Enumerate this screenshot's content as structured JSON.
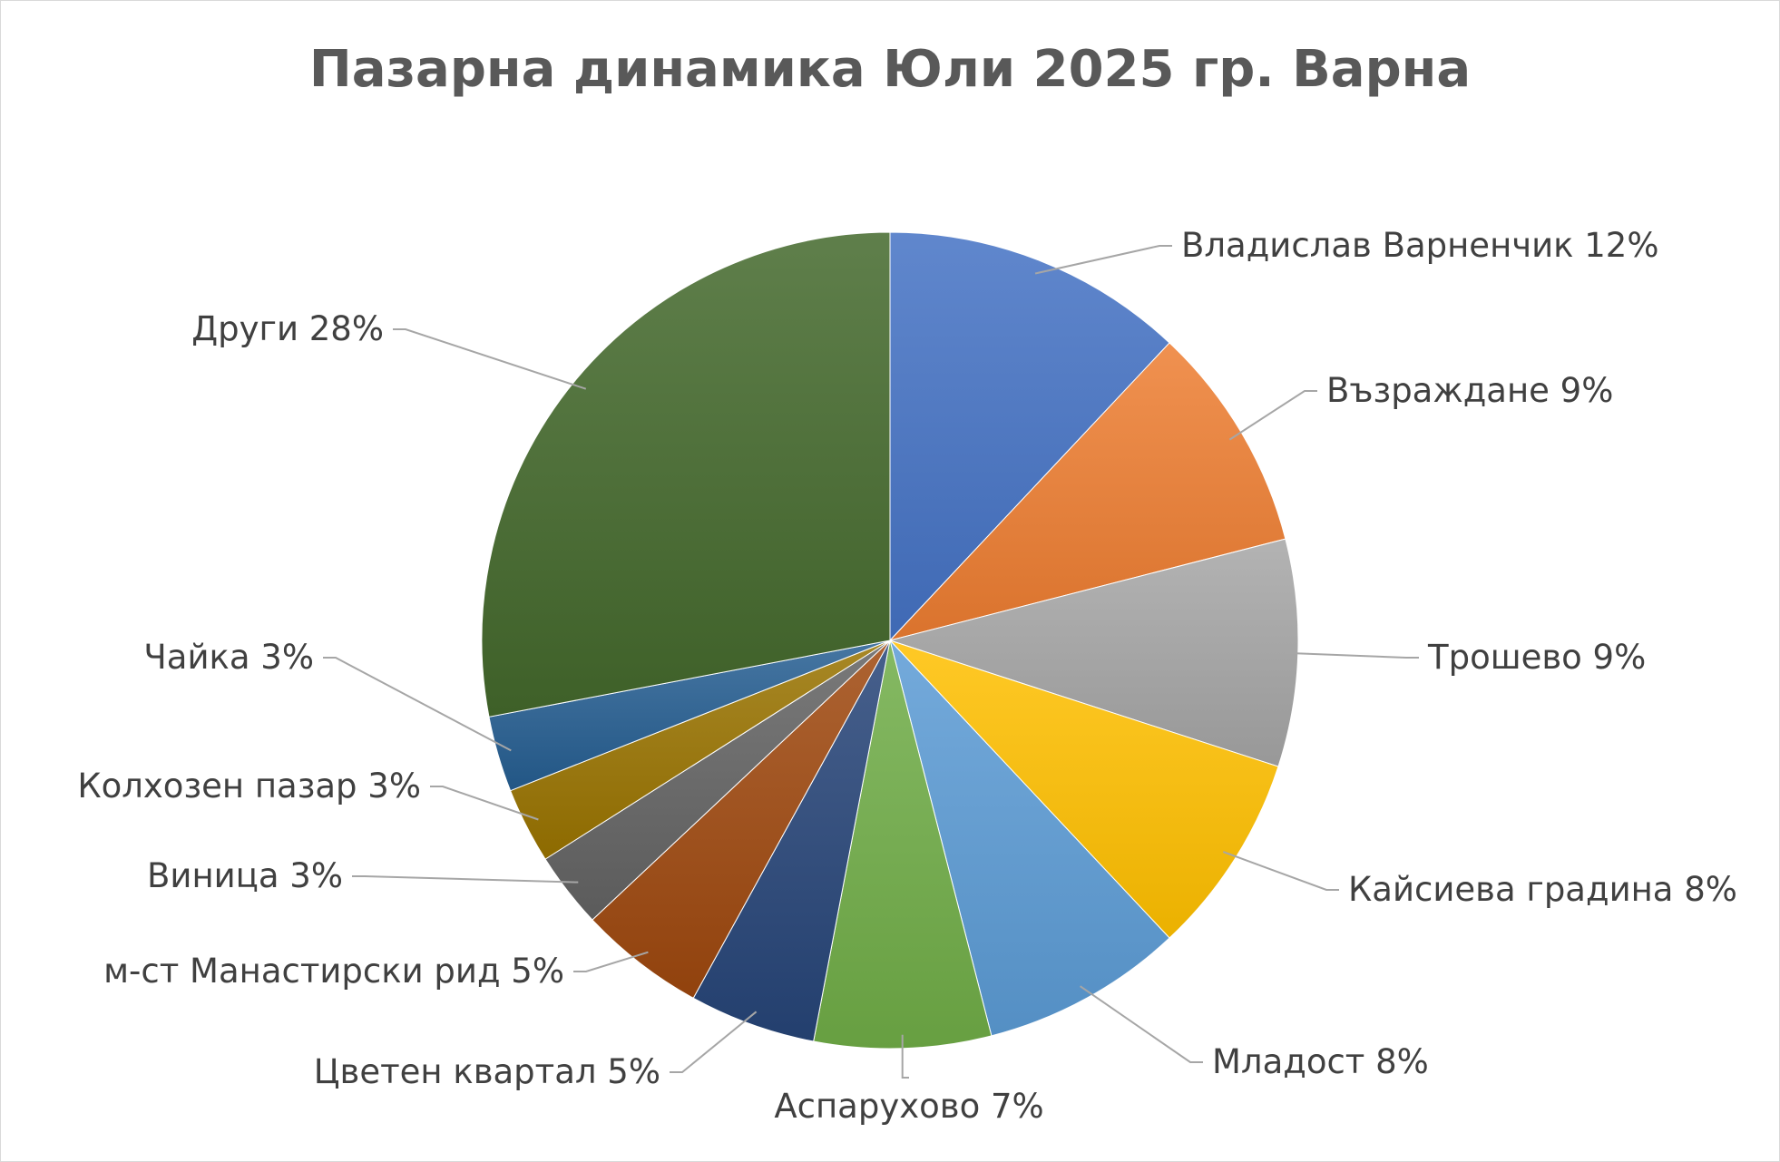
{
  "chart_data": {
    "type": "pie",
    "title": "Пазарна динамика Юли 2025 гр. Варна",
    "slices": [
      {
        "label": "Владислав Варненчик",
        "value": 12,
        "display": "Владислав Варненчик 12%",
        "color": "#4472C4",
        "anchor": "start"
      },
      {
        "label": "Възраждане",
        "value": 9,
        "display": "Възраждане 9%",
        "color": "#ED7D31",
        "anchor": "start"
      },
      {
        "label": "Трошево",
        "value": 9,
        "display": "Трошево 9%",
        "color": "#A5A5A5",
        "anchor": "start"
      },
      {
        "label": "Кайсиева градина",
        "value": 8,
        "display": "Кайсиева градина 8%",
        "color": "#FFC000",
        "anchor": "start"
      },
      {
        "label": "Младост",
        "value": 8,
        "display": "Младост 8%",
        "color": "#5B9BD5",
        "anchor": "start"
      },
      {
        "label": "Аспарухово",
        "value": 7,
        "display": "Аспарухово 7%",
        "color": "#70AD47",
        "anchor": "middle"
      },
      {
        "label": "Цветен квартал",
        "value": 5,
        "display": "Цветен квартал 5%",
        "color": "#264478",
        "anchor": "end"
      },
      {
        "label": "м-ст Манастирски рид",
        "value": 5,
        "display": "м-ст Манастирски рид 5%",
        "color": "#9E480E",
        "anchor": "end"
      },
      {
        "label": "Виница",
        "value": 3,
        "display": "Виница 3%",
        "color": "#636363",
        "anchor": "end"
      },
      {
        "label": "Колхозен пазар",
        "value": 3,
        "display": "Колхозен пазар 3%",
        "color": "#997300",
        "anchor": "end"
      },
      {
        "label": "Чайка",
        "value": 3,
        "display": "Чайка 3%",
        "color": "#255E91",
        "anchor": "end"
      },
      {
        "label": "Други",
        "value": 28,
        "display": "Други 28%",
        "color": "#43682B",
        "anchor": "end"
      }
    ],
    "legend": "none",
    "data_labels": "outside with leader lines"
  }
}
